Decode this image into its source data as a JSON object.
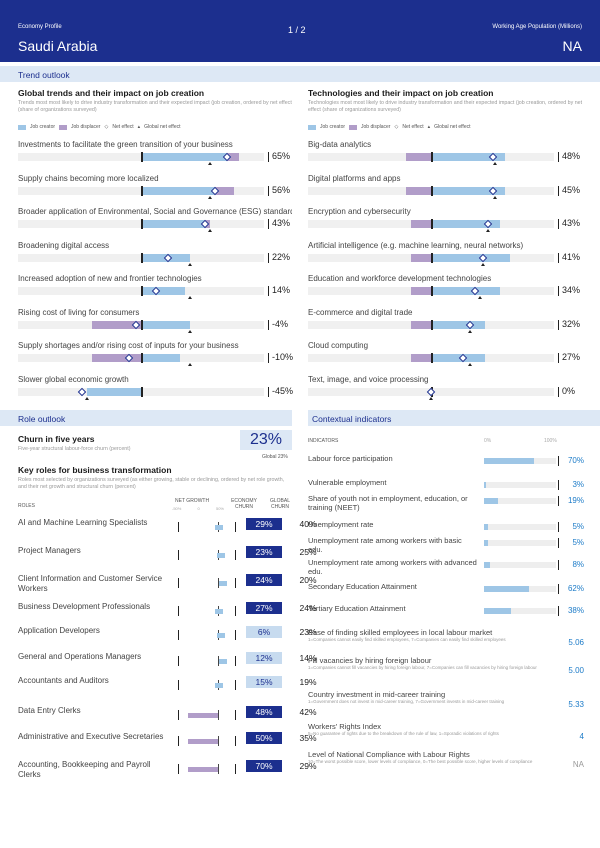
{
  "header": {
    "profile": "Economy Profile",
    "page": "1 / 2",
    "wap_label": "Working Age Population (Millions)",
    "country": "Saudi Arabia",
    "wap_value": "NA"
  },
  "sections": {
    "trend_outlook": "Trend outlook",
    "role_outlook": "Role outlook",
    "contextual": "Contextual indicators"
  },
  "global_trends": {
    "title": "Global trends and their impact on job creation",
    "subtitle": "Trends most most likely to drive industry transformation and their expected impact (job creation, ordered by net effect (share of organizations surveyed)",
    "legend": [
      "Job creator",
      "Job displacer",
      "Net effect",
      "Global net effect"
    ],
    "items": [
      {
        "label": "Investments to facilitate the green transition of your business",
        "value": "65%"
      },
      {
        "label": "Supply chains becoming more localized",
        "value": "56%"
      },
      {
        "label": "Broader application of Environmental, Social and Governance (ESG) standards",
        "value": "43%"
      },
      {
        "label": "Broadening digital access",
        "value": "22%"
      },
      {
        "label": "Increased adoption of new and frontier technologies",
        "value": "14%"
      },
      {
        "label": "Rising cost of living for consumers",
        "value": "-4%"
      },
      {
        "label": "Supply shortages and/or rising cost of inputs for your business",
        "value": "-10%"
      },
      {
        "label": "Slower global economic growth",
        "value": "-45%"
      }
    ]
  },
  "tech_trends": {
    "title": "Technologies and their impact on job creation",
    "subtitle": "Technologies most most likely to drive industry transformation and their expected impact (job creation, ordered by net effect (share of organizations surveyed)",
    "legend": [
      "Job creator",
      "Job displacer",
      "Net effect",
      "Global net effect"
    ],
    "items": [
      {
        "label": "Big-data analytics",
        "value": "48%"
      },
      {
        "label": "Digital platforms and apps",
        "value": "45%"
      },
      {
        "label": "Encryption and cybersecurity",
        "value": "43%"
      },
      {
        "label": "Artificial intelligence (e.g. machine learning, neural networks)",
        "value": "41%"
      },
      {
        "label": "Education and workforce development technologies",
        "value": "34%"
      },
      {
        "label": "E-commerce and digital trade",
        "value": "32%"
      },
      {
        "label": "Cloud computing",
        "value": "27%"
      },
      {
        "label": "Text, image, and voice processing",
        "value": "0%"
      }
    ]
  },
  "churn": {
    "title": "Churn in five years",
    "subtitle": "Five-year structural labour-force churn (percent)",
    "value": "23%",
    "global": "Global 23%"
  },
  "roles": {
    "title": "Key roles for business transformation",
    "subtitle": "Roles most selected by organizations surveyed (as either growing, stable or declining, ordered by net role growth, and their net growth and structural churn (percent)",
    "col_roles": "ROLES",
    "col_net": "NET GROWTH",
    "col_econ": "ECONOMY",
    "col_econ2": "CHURN",
    "col_global": "GLOBAL",
    "col_global2": "CHURN",
    "scale": [
      "-50%",
      "0",
      "50%"
    ],
    "items": [
      {
        "name": "AI and Machine Learning Specialists",
        "net": "29%",
        "churn": "40%"
      },
      {
        "name": "Project Managers",
        "net": "23%",
        "churn": "25%"
      },
      {
        "name": "Client Information and Customer Service Workers",
        "net": "24%",
        "churn": "20%"
      },
      {
        "name": "Business Development Professionals",
        "net": "27%",
        "churn": "24%"
      },
      {
        "name": "Application Developers",
        "net": "6%",
        "churn": "23%"
      },
      {
        "name": "General and Operations Managers",
        "net": "12%",
        "churn": "14%"
      },
      {
        "name": "Accountants and Auditors",
        "net": "15%",
        "churn": "19%"
      },
      {
        "name": "Data Entry Clerks",
        "net": "48%",
        "churn": "42%"
      },
      {
        "name": "Administrative and Executive Secretaries",
        "net": "50%",
        "churn": "35%"
      },
      {
        "name": "Accounting, Bookkeeping and Payroll Clerks",
        "net": "70%",
        "churn": "29%"
      }
    ]
  },
  "indicators": {
    "col": "INDICATORS",
    "scale0": "0%",
    "scale100": "100%",
    "items": [
      {
        "name": "Labour force participation",
        "sub": "",
        "value": "70%",
        "fill": 0.7
      },
      {
        "name": "Vulnerable employment",
        "sub": "",
        "value": "3%",
        "fill": 0.03
      },
      {
        "name": "Share of youth not in employment, education, or training (NEET)",
        "sub": "",
        "value": "19%",
        "fill": 0.19
      },
      {
        "name": "Unemployment rate",
        "sub": "",
        "value": "5%",
        "fill": 0.05
      },
      {
        "name": "Unemployment rate among workers with basic edu.",
        "sub": "",
        "value": "5%",
        "fill": 0.05
      },
      {
        "name": "Unemployment rate among workers with advanced edu.",
        "sub": "",
        "value": "8%",
        "fill": 0.08
      },
      {
        "name": "Secondary Education Attainment",
        "sub": "",
        "value": "62%",
        "fill": 0.62
      },
      {
        "name": "Tertiary Education Attainment",
        "sub": "",
        "value": "38%",
        "fill": 0.38
      },
      {
        "name": "Ease of finding skilled employees in local labour market",
        "sub": "1=Companies cannot easily find skilled employees, 7=Companies can easily find skilled employees",
        "value": "5.06"
      },
      {
        "name": "Fill vacancies by hiring foreign labour",
        "sub": "1=Companies cannot fill vacancies by hiring foreign labour, 7=Companies can fill vacancies by hiring foreign labour",
        "value": "5.00"
      },
      {
        "name": "Country investment in mid-career training",
        "sub": "1=Government does not invest in mid-career training, 7=Government invests in mid-career training",
        "value": "5.33"
      },
      {
        "name": "Workers' Rights Index",
        "sub": "5=No guarantee of rights due to the breakdown of the rule of law, 1=Sporadic violations of rights",
        "value": "4"
      },
      {
        "name": "Level of National Compliance with Labour Rights",
        "sub": "10=The worst possible score, lower levels of compliance, 0=The best possible score, higher levels of compliance",
        "value": "NA"
      }
    ]
  }
}
